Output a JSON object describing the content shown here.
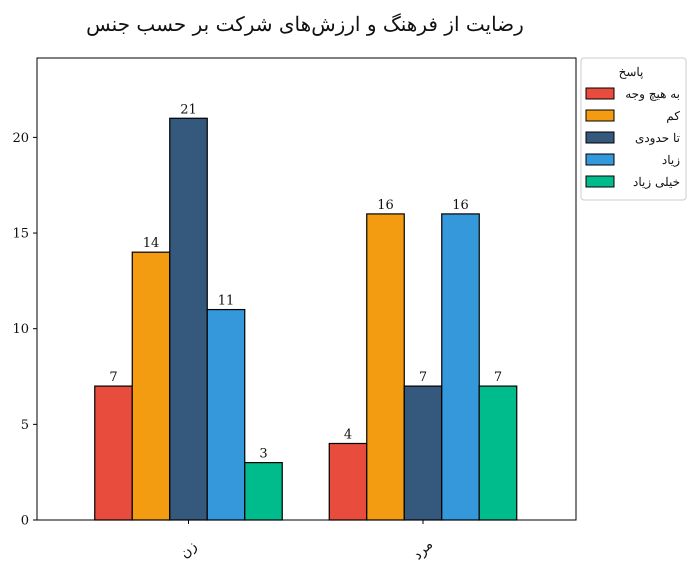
{
  "chart_data": {
    "type": "bar",
    "title": "رضایت از فرهنگ و ارزش‌های شرکت بر حسب جنس",
    "xlabel": "",
    "ylabel": "",
    "categories": [
      "زن",
      "مرد"
    ],
    "series": [
      {
        "name": "به هیچ وجه",
        "values": [
          7,
          4
        ],
        "color": "#e74c3c"
      },
      {
        "name": "کم",
        "values": [
          14,
          16
        ],
        "color": "#f39c12"
      },
      {
        "name": "تا حدودی",
        "values": [
          21,
          7
        ],
        "color": "#34597d"
      },
      {
        "name": "زیاد",
        "values": [
          11,
          16
        ],
        "color": "#3498db"
      },
      {
        "name": "خیلی زیاد",
        "values": [
          3,
          7
        ],
        "color": "#00bc8c"
      }
    ],
    "ylim": [
      0,
      24.15
    ],
    "yticks": [
      0,
      5,
      10,
      15,
      20
    ],
    "legend": {
      "title": "پاسخ",
      "position": "outside-top-right"
    },
    "grid": false,
    "data_labels": true
  }
}
